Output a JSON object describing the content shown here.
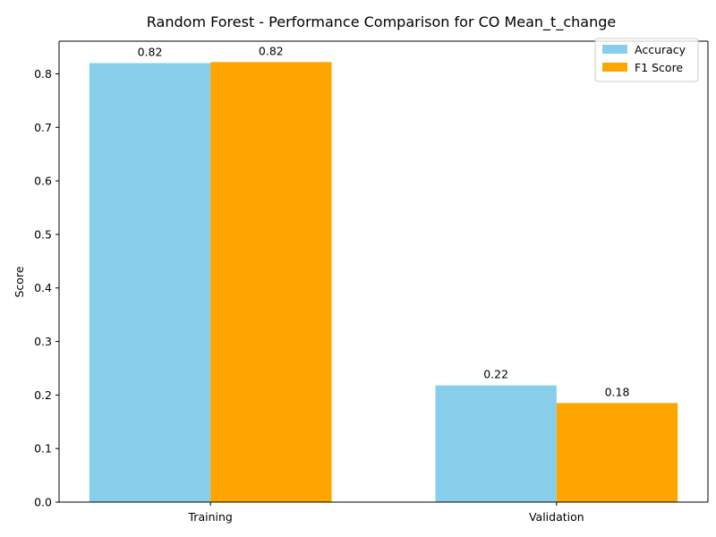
{
  "chart_data": {
    "type": "bar",
    "title": "Random Forest - Performance Comparison for CO Mean_t_change",
    "xlabel": "",
    "ylabel": "Score",
    "categories": [
      "Training",
      "Validation"
    ],
    "series": [
      {
        "name": "Accuracy",
        "color": "#87CEEB",
        "values": [
          0.82,
          0.218
        ],
        "labels": [
          "0.82",
          "0.22"
        ]
      },
      {
        "name": "F1 Score",
        "color": "#FFA500",
        "values": [
          0.822,
          0.185
        ],
        "labels": [
          "0.82",
          "0.18"
        ]
      }
    ],
    "ylim": [
      0,
      0.861
    ],
    "yticks": [
      0.0,
      0.1,
      0.2,
      0.3,
      0.4,
      0.5,
      0.6,
      0.7,
      0.8
    ],
    "ytick_labels": [
      "0.0",
      "0.1",
      "0.2",
      "0.3",
      "0.4",
      "0.5",
      "0.6",
      "0.7",
      "0.8"
    ],
    "grid": false,
    "legend": "top-right"
  }
}
